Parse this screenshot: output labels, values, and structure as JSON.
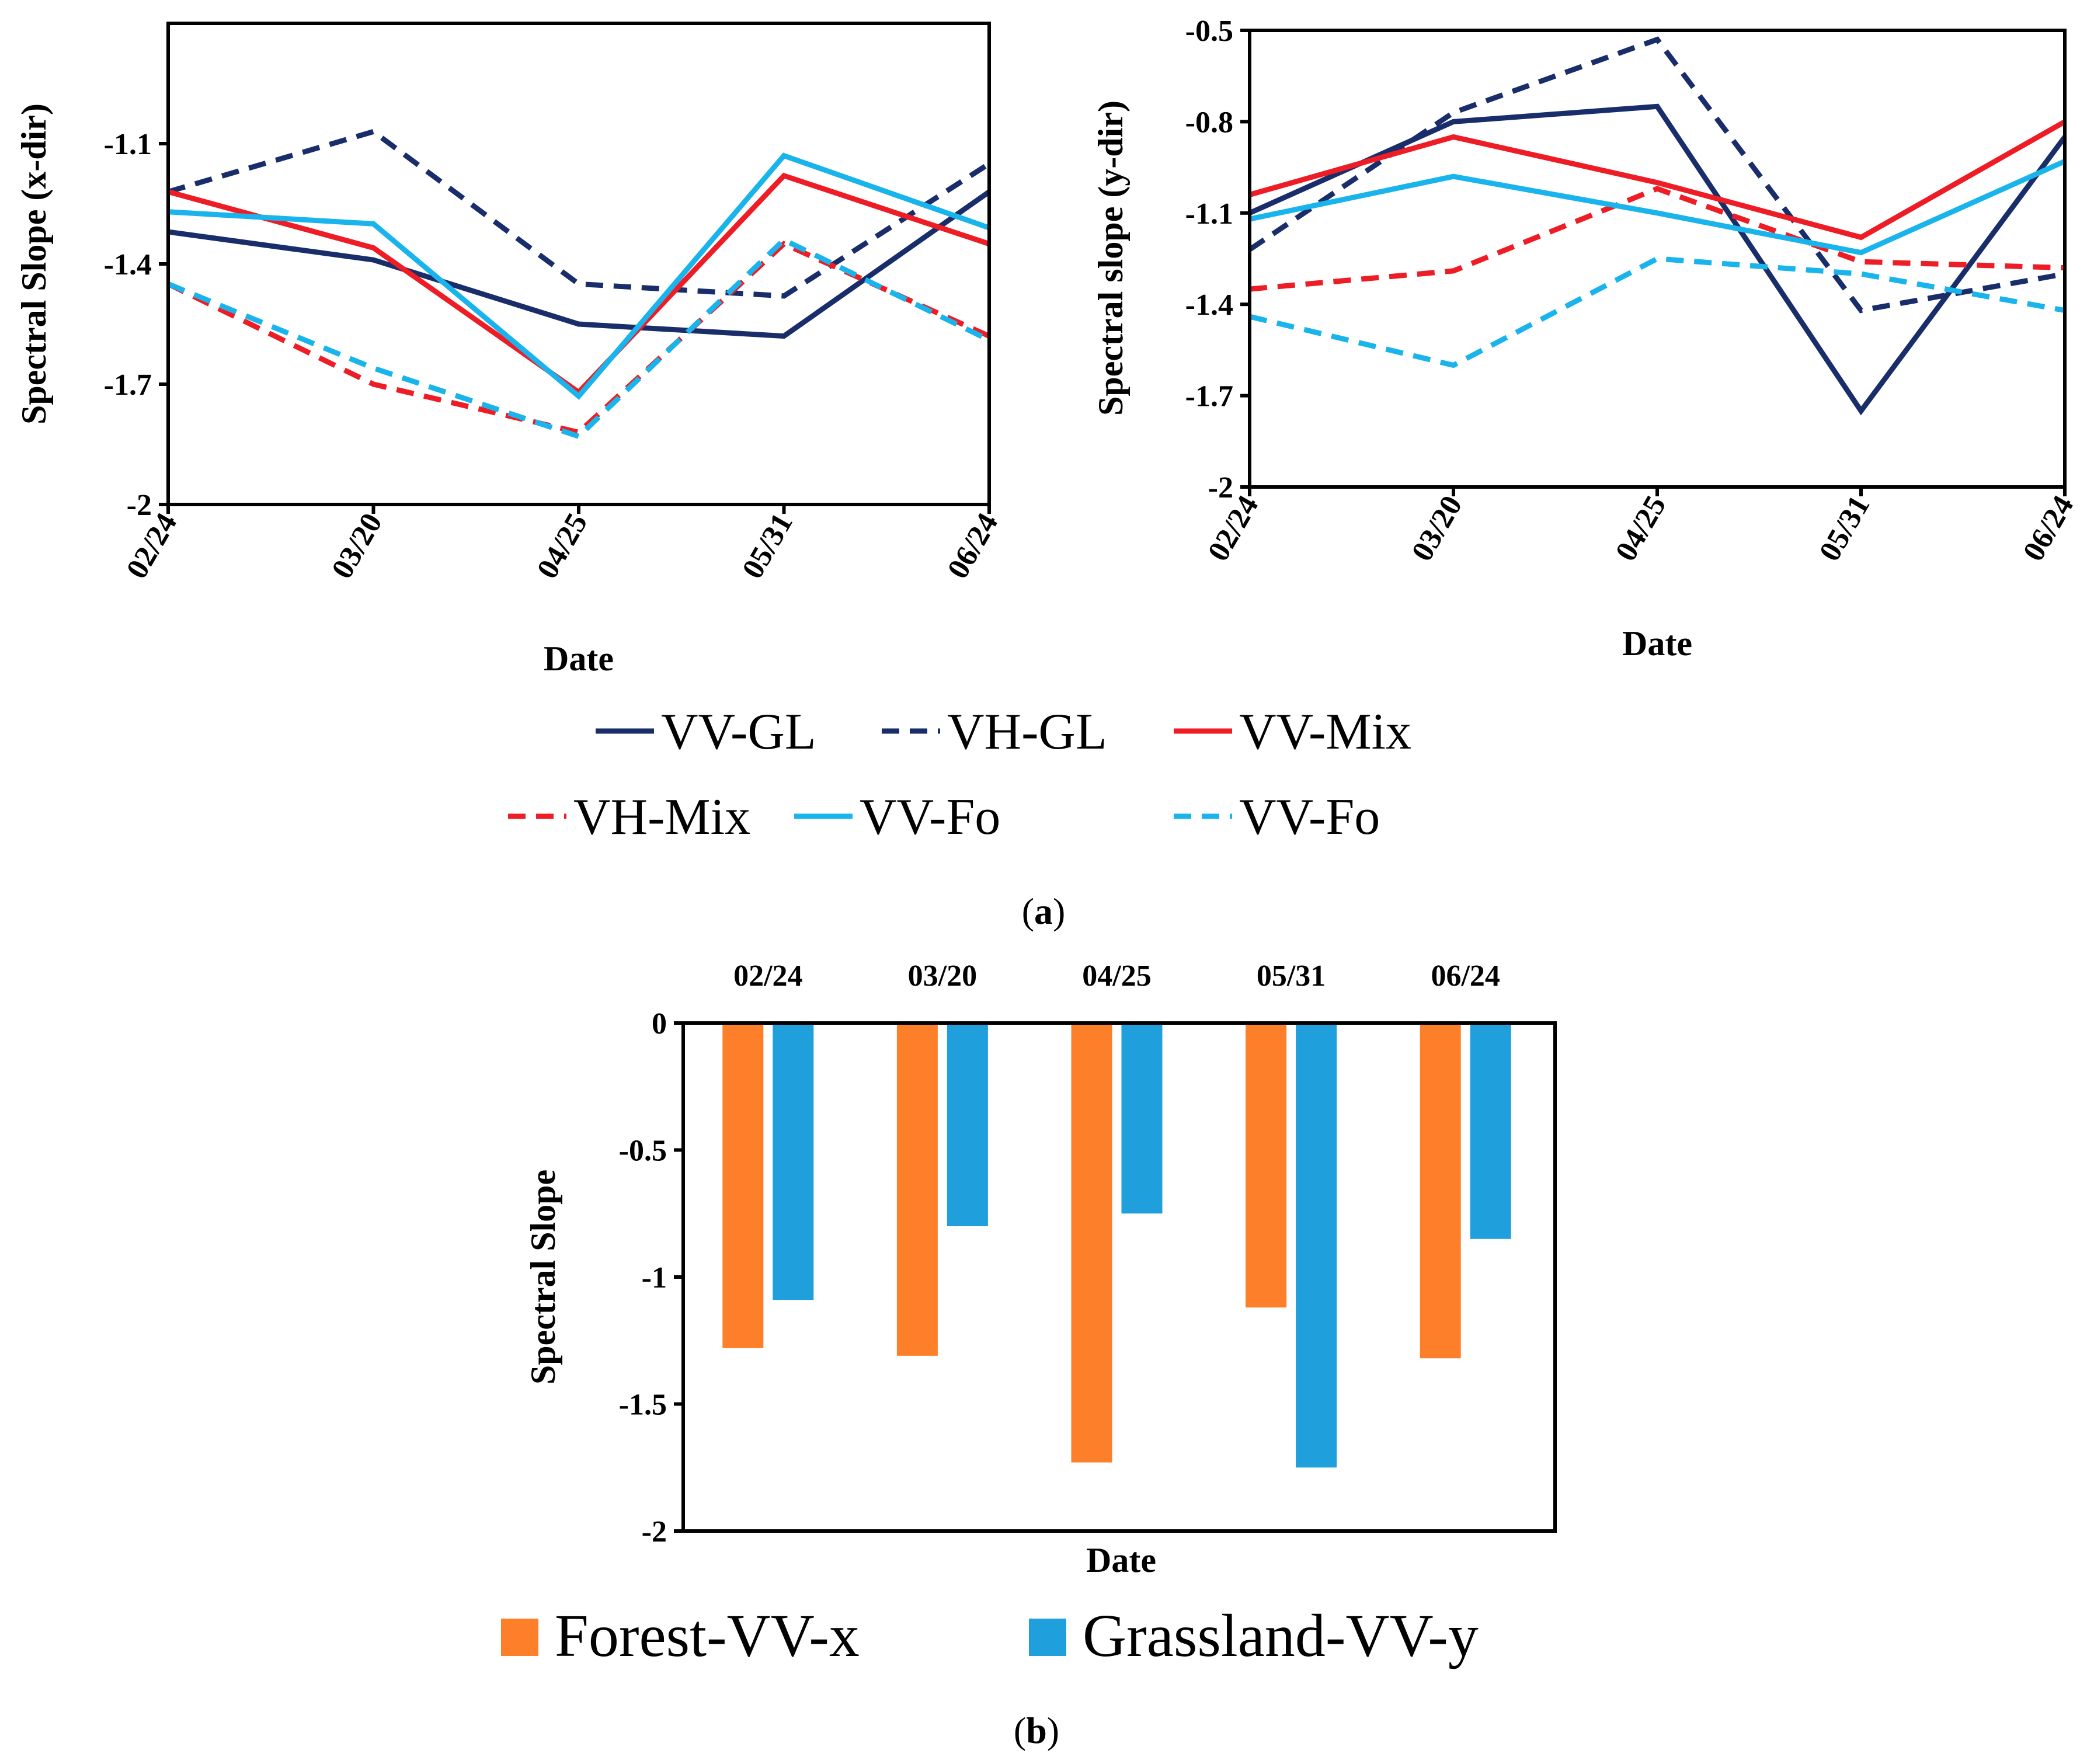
{
  "figure": {
    "caption_a": {
      "open": "(",
      "label": "a",
      "close": ")"
    },
    "caption_b": {
      "open": "(",
      "label": "b",
      "close": ")"
    }
  },
  "chart_data": [
    {
      "id": "a-left",
      "type": "line",
      "title": "",
      "xlabel": "Date",
      "ylabel": "Spectral Slope (x-dir)",
      "categories": [
        "02/24",
        "03/20",
        "04/25",
        "05/31",
        "06/24"
      ],
      "ylim": [
        -2,
        -0.8
      ],
      "yticks": [
        -2,
        -1.7,
        -1.4,
        -1.1
      ],
      "ytick_labels": [
        "-2",
        "-1.7",
        "-1.4",
        "-1.1"
      ],
      "grid": false,
      "series": [
        {
          "name": "VV-GL",
          "color": "#1a2d6b",
          "dash": false,
          "values": [
            -1.32,
            -1.39,
            -1.55,
            -1.58,
            -1.22
          ]
        },
        {
          "name": "VH-GL",
          "color": "#1a2d6b",
          "dash": true,
          "values": [
            -1.22,
            -1.07,
            -1.45,
            -1.48,
            -1.15
          ]
        },
        {
          "name": "VV-Mix",
          "color": "#ee1c25",
          "dash": false,
          "values": [
            -1.22,
            -1.36,
            -1.72,
            -1.18,
            -1.35
          ]
        },
        {
          "name": "VH-Mix",
          "color": "#ee1c25",
          "dash": true,
          "values": [
            -1.45,
            -1.7,
            -1.82,
            -1.35,
            -1.58
          ]
        },
        {
          "name": "VV-Fo",
          "color": "#1ab4ec",
          "dash": false,
          "values": [
            -1.27,
            -1.3,
            -1.73,
            -1.13,
            -1.31
          ]
        },
        {
          "name": "VV-Fo",
          "color": "#1ab4ec",
          "dash": true,
          "values": [
            -1.45,
            -1.66,
            -1.83,
            -1.34,
            -1.59
          ]
        }
      ]
    },
    {
      "id": "a-right",
      "type": "line",
      "title": "",
      "xlabel": "Date",
      "ylabel": "Spectral slope (y-dir)",
      "categories": [
        "02/24",
        "03/20",
        "04/25",
        "05/31",
        "06/24"
      ],
      "ylim": [
        -2,
        -0.5
      ],
      "yticks": [
        -2,
        -1.7,
        -1.4,
        -1.1,
        -0.8,
        -0.5
      ],
      "ytick_labels": [
        "-2",
        "-1.7",
        "-1.4",
        "-1.1",
        "-0.8",
        "-0.5"
      ],
      "grid": false,
      "series": [
        {
          "name": "VV-GL",
          "color": "#1a2d6b",
          "dash": false,
          "values": [
            -1.1,
            -0.8,
            -0.75,
            -1.75,
            -0.85
          ]
        },
        {
          "name": "VH-GL",
          "color": "#1a2d6b",
          "dash": true,
          "values": [
            -1.22,
            -0.77,
            -0.53,
            -1.42,
            -1.3
          ]
        },
        {
          "name": "VV-Mix",
          "color": "#ee1c25",
          "dash": false,
          "values": [
            -1.04,
            -0.85,
            -1.0,
            -1.18,
            -0.8
          ]
        },
        {
          "name": "VH-Mix",
          "color": "#ee1c25",
          "dash": true,
          "values": [
            -1.35,
            -1.29,
            -1.02,
            -1.26,
            -1.28
          ]
        },
        {
          "name": "VV-Fo",
          "color": "#1ab4ec",
          "dash": false,
          "values": [
            -1.12,
            -0.98,
            -1.1,
            -1.23,
            -0.93
          ]
        },
        {
          "name": "VV-Fo",
          "color": "#1ab4ec",
          "dash": true,
          "values": [
            -1.44,
            -1.6,
            -1.25,
            -1.3,
            -1.42
          ]
        }
      ]
    },
    {
      "id": "b",
      "type": "bar",
      "title": "",
      "xlabel": "Date",
      "ylabel": "Spectral Slope",
      "categories": [
        "02/24",
        "03/20",
        "04/25",
        "05/31",
        "06/24"
      ],
      "ylim": [
        -2,
        0
      ],
      "yticks": [
        -2,
        -1.5,
        -1,
        -0.5,
        0
      ],
      "ytick_labels": [
        "-2",
        "-1.5",
        "-1",
        "-0.5",
        "0"
      ],
      "grid": false,
      "legend_position": "bottom",
      "series": [
        {
          "name": "Forest-VV-x",
          "color": "#fd7f2a",
          "values": [
            -1.28,
            -1.31,
            -1.73,
            -1.12,
            -1.32
          ]
        },
        {
          "name": "Grassland-VV-y",
          "color": "#1f9fdc",
          "values": [
            -1.09,
            -0.8,
            -0.75,
            -1.75,
            -0.85
          ]
        }
      ]
    }
  ]
}
